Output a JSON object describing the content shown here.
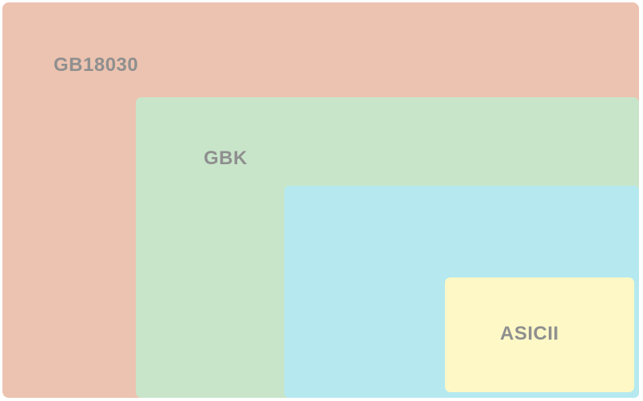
{
  "diagram": {
    "outer": {
      "label": "GB18030",
      "color": "#ecc3b0"
    },
    "middle": {
      "label": "GBK",
      "color": "#c8e5ca"
    },
    "inner": {
      "label": "",
      "color": "#b5e9ef"
    },
    "core": {
      "label": "ASICII",
      "color": "#fdf8c6"
    }
  }
}
